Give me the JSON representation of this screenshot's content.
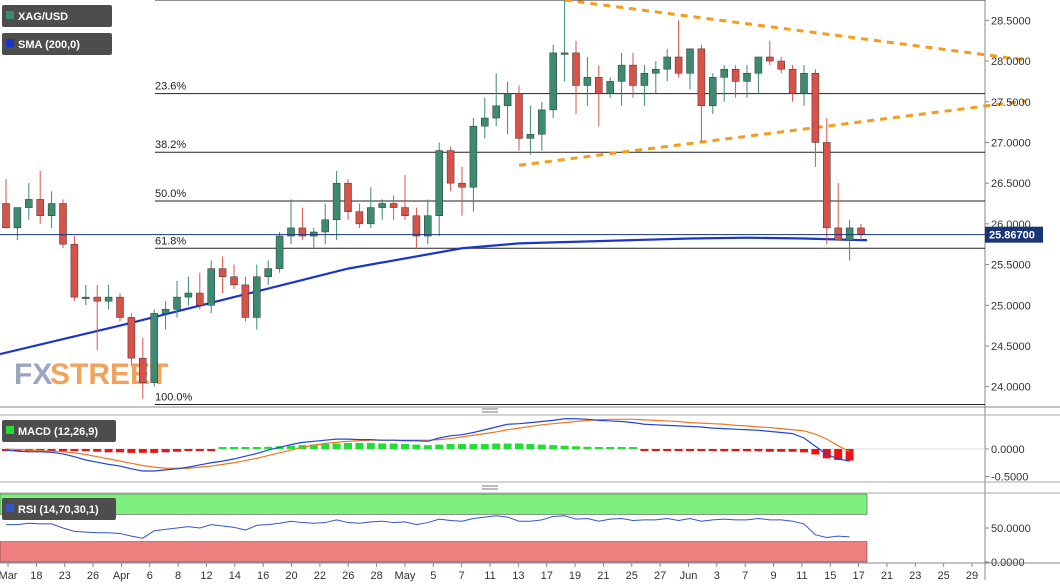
{
  "symbol": "XAG/USD",
  "indicators": {
    "sma_label": "SMA (200,0)",
    "macd_label": "MACD (12,26,9)",
    "rsi_label": "RSI (14,70,30,1)"
  },
  "watermark": {
    "part1": "FX",
    "part2": "STREET"
  },
  "colors": {
    "bull": "#3c8a70",
    "bear": "#d9524a",
    "sma": "#1a35c8",
    "trendline": "#f39c1e",
    "macd_pos": "#22dd33",
    "macd_neg": "#ee1111",
    "macd_line": "#2244dd",
    "signal_line": "#ee7722",
    "rsi_over": "#7ef07e",
    "rsi_under": "#f08080",
    "price_tag": "#1a3575"
  },
  "chart_data": [
    {
      "type": "candlestick",
      "title": "XAG/USD",
      "ylim": [
        23.75,
        28.75
      ],
      "yticks": [
        "28.5000",
        "28.0000",
        "27.5000",
        "27.0000",
        "26.5000",
        "26.0000",
        "25.5000",
        "25.0000",
        "24.5000",
        "24.0000"
      ],
      "ytick_values": [
        28.5,
        28.0,
        27.5,
        27.0,
        26.5,
        26.0,
        25.5,
        25.0,
        24.5,
        24.0
      ],
      "xticks": [
        "Mar",
        "18",
        "23",
        "26",
        "Apr",
        "6",
        "8",
        "12",
        "14",
        "16",
        "20",
        "22",
        "26",
        "28",
        "May",
        "5",
        "7",
        "11",
        "13",
        "17",
        "19",
        "21",
        "25",
        "27",
        "Jun",
        "3",
        "7",
        "9",
        "11",
        "15",
        "17",
        "21",
        "23",
        "25",
        "29"
      ],
      "last_price": "25.86700",
      "last_price_value": 25.867,
      "candles": [
        {
          "o": 26.25,
          "h": 26.55,
          "l": 25.95,
          "c": 25.95
        },
        {
          "o": 25.95,
          "h": 26.2,
          "l": 25.8,
          "c": 26.2
        },
        {
          "o": 26.2,
          "h": 26.5,
          "l": 26.05,
          "c": 26.3
        },
        {
          "o": 26.3,
          "h": 26.65,
          "l": 26.0,
          "c": 26.1
        },
        {
          "o": 26.1,
          "h": 26.4,
          "l": 25.95,
          "c": 26.25
        },
        {
          "o": 26.25,
          "h": 26.3,
          "l": 25.7,
          "c": 25.75
        },
        {
          "o": 25.75,
          "h": 25.85,
          "l": 25.05,
          "c": 25.1
        },
        {
          "o": 25.1,
          "h": 25.25,
          "l": 25.0,
          "c": 25.1
        },
        {
          "o": 25.1,
          "h": 25.25,
          "l": 24.45,
          "c": 25.05
        },
        {
          "o": 25.05,
          "h": 25.25,
          "l": 24.95,
          "c": 25.1
        },
        {
          "o": 25.1,
          "h": 25.15,
          "l": 24.8,
          "c": 24.85
        },
        {
          "o": 24.85,
          "h": 24.9,
          "l": 24.25,
          "c": 24.35
        },
        {
          "o": 24.35,
          "h": 24.6,
          "l": 23.85,
          "c": 24.05
        },
        {
          "o": 24.05,
          "h": 24.95,
          "l": 24.0,
          "c": 24.9
        },
        {
          "o": 24.9,
          "h": 25.05,
          "l": 24.7,
          "c": 24.95
        },
        {
          "o": 24.95,
          "h": 25.3,
          "l": 24.85,
          "c": 25.1
        },
        {
          "o": 25.1,
          "h": 25.35,
          "l": 25.0,
          "c": 25.15
        },
        {
          "o": 25.15,
          "h": 25.4,
          "l": 24.95,
          "c": 25.0
        },
        {
          "o": 25.0,
          "h": 25.55,
          "l": 24.9,
          "c": 25.45
        },
        {
          "o": 25.45,
          "h": 25.6,
          "l": 25.15,
          "c": 25.35
        },
        {
          "o": 25.35,
          "h": 25.5,
          "l": 25.2,
          "c": 25.25
        },
        {
          "o": 25.25,
          "h": 25.35,
          "l": 24.8,
          "c": 24.85
        },
        {
          "o": 24.85,
          "h": 25.5,
          "l": 24.7,
          "c": 25.35
        },
        {
          "o": 25.35,
          "h": 25.55,
          "l": 25.25,
          "c": 25.45
        },
        {
          "o": 25.45,
          "h": 25.9,
          "l": 25.4,
          "c": 25.85
        },
        {
          "o": 25.85,
          "h": 26.3,
          "l": 25.75,
          "c": 25.95
        },
        {
          "o": 25.95,
          "h": 26.2,
          "l": 25.8,
          "c": 25.85
        },
        {
          "o": 25.85,
          "h": 25.95,
          "l": 25.7,
          "c": 25.9
        },
        {
          "o": 25.9,
          "h": 26.25,
          "l": 25.75,
          "c": 26.05
        },
        {
          "o": 26.05,
          "h": 26.65,
          "l": 25.8,
          "c": 26.5
        },
        {
          "o": 26.5,
          "h": 26.55,
          "l": 26.05,
          "c": 26.15
        },
        {
          "o": 26.15,
          "h": 26.25,
          "l": 25.95,
          "c": 26.0
        },
        {
          "o": 26.0,
          "h": 26.45,
          "l": 25.95,
          "c": 26.2
        },
        {
          "o": 26.2,
          "h": 26.3,
          "l": 26.05,
          "c": 26.25
        },
        {
          "o": 26.25,
          "h": 26.35,
          "l": 26.05,
          "c": 26.2
        },
        {
          "o": 26.2,
          "h": 26.6,
          "l": 26.05,
          "c": 26.1
        },
        {
          "o": 26.1,
          "h": 26.2,
          "l": 25.7,
          "c": 25.85
        },
        {
          "o": 25.85,
          "h": 26.3,
          "l": 25.75,
          "c": 26.1
        },
        {
          "o": 26.1,
          "h": 27.0,
          "l": 25.85,
          "c": 26.9
        },
        {
          "o": 26.9,
          "h": 26.95,
          "l": 26.4,
          "c": 26.5
        },
        {
          "o": 26.5,
          "h": 26.7,
          "l": 26.1,
          "c": 26.45
        },
        {
          "o": 26.45,
          "h": 27.3,
          "l": 26.15,
          "c": 27.2
        },
        {
          "o": 27.2,
          "h": 27.55,
          "l": 27.05,
          "c": 27.3
        },
        {
          "o": 27.3,
          "h": 27.85,
          "l": 27.2,
          "c": 27.45
        },
        {
          "o": 27.45,
          "h": 27.75,
          "l": 27.1,
          "c": 27.6
        },
        {
          "o": 27.6,
          "h": 27.7,
          "l": 26.9,
          "c": 27.05
        },
        {
          "o": 27.05,
          "h": 27.45,
          "l": 26.85,
          "c": 27.1
        },
        {
          "o": 27.1,
          "h": 27.5,
          "l": 26.9,
          "c": 27.4
        },
        {
          "o": 27.4,
          "h": 28.2,
          "l": 27.3,
          "c": 28.1
        },
        {
          "o": 28.1,
          "h": 28.75,
          "l": 27.75,
          "c": 28.1
        },
        {
          "o": 28.1,
          "h": 28.25,
          "l": 27.35,
          "c": 27.7
        },
        {
          "o": 27.7,
          "h": 28.05,
          "l": 27.45,
          "c": 27.8
        },
        {
          "o": 27.8,
          "h": 27.95,
          "l": 27.2,
          "c": 27.6
        },
        {
          "o": 27.6,
          "h": 27.8,
          "l": 27.55,
          "c": 27.75
        },
        {
          "o": 27.75,
          "h": 28.1,
          "l": 27.45,
          "c": 27.95
        },
        {
          "o": 27.95,
          "h": 28.1,
          "l": 27.55,
          "c": 27.7
        },
        {
          "o": 27.7,
          "h": 27.95,
          "l": 27.45,
          "c": 27.85
        },
        {
          "o": 27.85,
          "h": 28.0,
          "l": 27.6,
          "c": 27.9
        },
        {
          "o": 27.9,
          "h": 28.15,
          "l": 27.75,
          "c": 28.05
        },
        {
          "o": 28.05,
          "h": 28.5,
          "l": 27.8,
          "c": 27.85
        },
        {
          "o": 27.85,
          "h": 28.1,
          "l": 27.65,
          "c": 28.15
        },
        {
          "o": 28.15,
          "h": 28.2,
          "l": 27.0,
          "c": 27.45
        },
        {
          "o": 27.45,
          "h": 27.85,
          "l": 27.35,
          "c": 27.8
        },
        {
          "o": 27.8,
          "h": 27.95,
          "l": 27.5,
          "c": 27.9
        },
        {
          "o": 27.9,
          "h": 27.95,
          "l": 27.55,
          "c": 27.75
        },
        {
          "o": 27.75,
          "h": 27.95,
          "l": 27.55,
          "c": 27.85
        },
        {
          "o": 27.85,
          "h": 28.05,
          "l": 27.6,
          "c": 28.05
        },
        {
          "o": 28.05,
          "h": 28.25,
          "l": 27.95,
          "c": 28.0
        },
        {
          "o": 28.0,
          "h": 28.05,
          "l": 27.85,
          "c": 27.9
        },
        {
          "o": 27.9,
          "h": 27.95,
          "l": 27.5,
          "c": 27.6
        },
        {
          "o": 27.6,
          "h": 27.95,
          "l": 27.45,
          "c": 27.85
        },
        {
          "o": 27.85,
          "h": 27.9,
          "l": 26.7,
          "c": 27.0
        },
        {
          "o": 27.0,
          "h": 27.3,
          "l": 25.75,
          "c": 25.95
        },
        {
          "o": 25.95,
          "h": 26.5,
          "l": 25.8,
          "c": 25.8
        },
        {
          "o": 25.8,
          "h": 26.05,
          "l": 25.55,
          "c": 25.95
        },
        {
          "o": 25.95,
          "h": 26.0,
          "l": 25.8,
          "c": 25.87
        }
      ],
      "sma_200": [
        {
          "i": 0,
          "v": 24.4
        },
        {
          "i": 10,
          "v": 24.75
        },
        {
          "i": 20,
          "v": 25.1
        },
        {
          "i": 30,
          "v": 25.45
        },
        {
          "i": 40,
          "v": 25.7
        },
        {
          "i": 45,
          "v": 25.76
        },
        {
          "i": 50,
          "v": 25.78
        },
        {
          "i": 55,
          "v": 25.8
        },
        {
          "i": 60,
          "v": 25.82
        },
        {
          "i": 65,
          "v": 25.83
        },
        {
          "i": 70,
          "v": 25.82
        },
        {
          "i": 75,
          "v": 25.8
        }
      ],
      "fibonacci": [
        {
          "label": "23.6%",
          "value": 27.6
        },
        {
          "label": "38.2%",
          "value": 26.88
        },
        {
          "label": "50.0%",
          "value": 26.28
        },
        {
          "label": "61.8%",
          "value": 25.7
        },
        {
          "label": "100.0%",
          "value": 23.78
        }
      ],
      "high_line": 28.75,
      "trendlines": [
        {
          "from": {
            "i": 49,
            "v": 28.75
          },
          "to": {
            "i": 86,
            "v": 27.95
          }
        },
        {
          "from": {
            "i": 45,
            "v": 26.72
          },
          "to": {
            "i": 86,
            "v": 27.45
          }
        }
      ]
    },
    {
      "type": "bar",
      "title": "MACD (12,26,9)",
      "ylim": [
        -0.6,
        0.6
      ],
      "yticks": [
        "0.0000",
        "-0.5000"
      ],
      "ytick_values": [
        0.0,
        -0.5
      ],
      "histogram": [
        -0.02,
        -0.02,
        -0.01,
        -0.01,
        -0.01,
        -0.02,
        -0.03,
        -0.04,
        -0.05,
        -0.06,
        -0.06,
        -0.07,
        -0.07,
        -0.07,
        -0.06,
        -0.05,
        -0.03,
        -0.02,
        -0.01,
        0.0,
        0.01,
        0.02,
        0.03,
        0.04,
        0.05,
        0.06,
        0.07,
        0.08,
        0.09,
        0.1,
        0.11,
        0.11,
        0.11,
        0.1,
        0.1,
        0.09,
        0.08,
        0.07,
        0.08,
        0.09,
        0.09,
        0.09,
        0.09,
        0.1,
        0.1,
        0.1,
        0.09,
        0.08,
        0.07,
        0.06,
        0.05,
        0.04,
        0.03,
        0.02,
        0.01,
        0.0,
        -0.01,
        -0.01,
        -0.02,
        -0.02,
        -0.03,
        -0.03,
        -0.03,
        -0.04,
        -0.04,
        -0.04,
        -0.04,
        -0.05,
        -0.05,
        -0.05,
        -0.06,
        -0.1,
        -0.17,
        -0.2,
        -0.21
      ],
      "macd_line": [
        -0.02,
        -0.04,
        -0.05,
        -0.05,
        -0.06,
        -0.09,
        -0.14,
        -0.2,
        -0.24,
        -0.28,
        -0.31,
        -0.36,
        -0.4,
        -0.4,
        -0.38,
        -0.36,
        -0.33,
        -0.29,
        -0.25,
        -0.22,
        -0.18,
        -0.13,
        -0.08,
        -0.02,
        0.03,
        0.08,
        0.12,
        0.14,
        0.16,
        0.18,
        0.18,
        0.17,
        0.17,
        0.16,
        0.16,
        0.15,
        0.15,
        0.14,
        0.2,
        0.24,
        0.26,
        0.3,
        0.35,
        0.4,
        0.45,
        0.46,
        0.48,
        0.5,
        0.52,
        0.55,
        0.55,
        0.54,
        0.52,
        0.51,
        0.5,
        0.48,
        0.45,
        0.44,
        0.43,
        0.42,
        0.41,
        0.4,
        0.38,
        0.37,
        0.36,
        0.35,
        0.34,
        0.32,
        0.3,
        0.28,
        0.2,
        0.05,
        -0.1,
        -0.18,
        -0.22
      ],
      "signal_line": [
        0.0,
        -0.01,
        -0.02,
        -0.03,
        -0.04,
        -0.05,
        -0.07,
        -0.1,
        -0.14,
        -0.18,
        -0.22,
        -0.26,
        -0.3,
        -0.33,
        -0.35,
        -0.35,
        -0.35,
        -0.33,
        -0.31,
        -0.28,
        -0.25,
        -0.21,
        -0.17,
        -0.12,
        -0.07,
        -0.02,
        0.03,
        0.07,
        0.1,
        0.12,
        0.14,
        0.15,
        0.16,
        0.16,
        0.16,
        0.16,
        0.16,
        0.16,
        0.17,
        0.19,
        0.22,
        0.25,
        0.28,
        0.31,
        0.35,
        0.38,
        0.41,
        0.44,
        0.46,
        0.48,
        0.5,
        0.52,
        0.53,
        0.54,
        0.54,
        0.54,
        0.53,
        0.52,
        0.51,
        0.5,
        0.48,
        0.47,
        0.46,
        0.45,
        0.43,
        0.42,
        0.4,
        0.39,
        0.37,
        0.35,
        0.33,
        0.27,
        0.18,
        0.06,
        -0.05
      ]
    },
    {
      "type": "line",
      "title": "RSI (14,70,30,1)",
      "ylim": [
        0,
        100
      ],
      "yticks": [
        "50.0000",
        "0.0000"
      ],
      "ytick_values": [
        50,
        0
      ],
      "overbought": 70,
      "oversold": 30,
      "values": [
        55,
        55,
        57,
        56,
        56,
        50,
        45,
        44,
        43,
        43,
        42,
        38,
        35,
        46,
        48,
        50,
        52,
        50,
        55,
        53,
        51,
        47,
        54,
        55,
        57,
        60,
        58,
        57,
        58,
        62,
        58,
        57,
        59,
        60,
        58,
        59,
        55,
        58,
        63,
        61,
        60,
        64,
        66,
        68,
        66,
        60,
        60,
        62,
        67,
        68,
        63,
        64,
        60,
        63,
        64,
        61,
        62,
        62,
        64,
        61,
        64,
        60,
        62,
        63,
        62,
        62,
        64,
        62,
        62,
        60,
        56,
        40,
        36,
        38,
        37
      ]
    }
  ]
}
